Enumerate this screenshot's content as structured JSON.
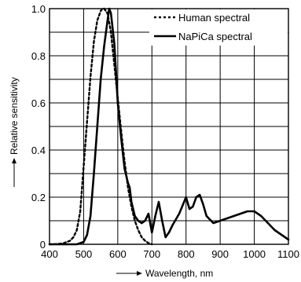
{
  "chart_data": {
    "type": "line",
    "xlabel": "Wavelength, nm",
    "ylabel": "Relative sensitivity",
    "xlim": [
      400,
      1100
    ],
    "ylim": [
      0,
      1.0
    ],
    "x_ticks": [
      400,
      500,
      600,
      700,
      800,
      900,
      1000,
      1100
    ],
    "y_ticks": [
      0,
      0.2,
      0.4,
      0.6,
      0.8,
      1.0
    ],
    "x_tick_labels": [
      "400",
      "500",
      "600",
      "700",
      "800",
      "900",
      "1000",
      "1100"
    ],
    "y_tick_labels": [
      "0",
      "0.2",
      "0.4",
      "0.6",
      "0.8",
      "1.0"
    ],
    "grid": true,
    "legend_position": "top-right",
    "series": [
      {
        "name": "Human spectral",
        "style": "dashed",
        "color": "#000000",
        "x": [
          400,
          420,
          440,
          460,
          470,
          480,
          490,
          500,
          510,
          520,
          530,
          540,
          550,
          555,
          560,
          565,
          570,
          580,
          590,
          600,
          610,
          620,
          630,
          640,
          650,
          660,
          670,
          680,
          690,
          700
        ],
        "y": [
          0.0,
          0.001,
          0.004,
          0.015,
          0.03,
          0.06,
          0.14,
          0.33,
          0.52,
          0.71,
          0.86,
          0.95,
          0.99,
          1.0,
          1.0,
          0.99,
          0.98,
          0.9,
          0.76,
          0.62,
          0.48,
          0.35,
          0.24,
          0.16,
          0.1,
          0.06,
          0.03,
          0.015,
          0.005,
          0.0
        ]
      },
      {
        "name": "NaPiCa spectral",
        "style": "solid",
        "color": "#000000",
        "x": [
          400,
          480,
          500,
          510,
          520,
          530,
          540,
          550,
          560,
          570,
          575,
          580,
          590,
          600,
          610,
          620,
          630,
          635,
          640,
          650,
          660,
          670,
          680,
          690,
          700,
          710,
          720,
          730,
          740,
          750,
          760,
          780,
          800,
          810,
          820,
          830,
          840,
          850,
          860,
          880,
          900,
          920,
          940,
          960,
          980,
          1000,
          1020,
          1040,
          1060,
          1080,
          1100
        ],
        "y": [
          0.0,
          0.0,
          0.01,
          0.04,
          0.12,
          0.3,
          0.5,
          0.7,
          0.84,
          0.95,
          1.0,
          0.98,
          0.85,
          0.6,
          0.45,
          0.32,
          0.26,
          0.24,
          0.18,
          0.12,
          0.1,
          0.09,
          0.1,
          0.13,
          0.05,
          0.12,
          0.18,
          0.1,
          0.03,
          0.05,
          0.08,
          0.13,
          0.2,
          0.15,
          0.16,
          0.2,
          0.21,
          0.17,
          0.12,
          0.09,
          0.1,
          0.11,
          0.12,
          0.13,
          0.14,
          0.14,
          0.12,
          0.09,
          0.06,
          0.04,
          0.02
        ]
      }
    ]
  }
}
